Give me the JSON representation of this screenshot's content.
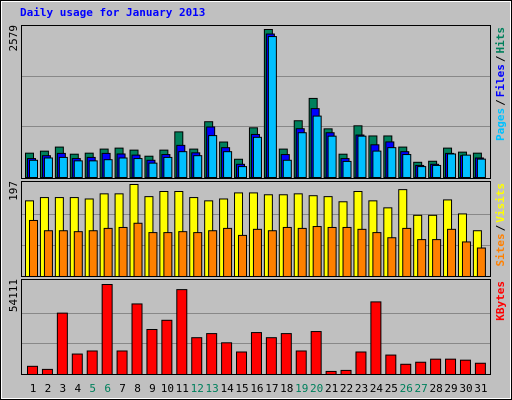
{
  "chart_data": [
    {
      "type": "bar",
      "title": "Daily usage for January 2013",
      "ylim": [
        0,
        2579
      ],
      "yticks": [
        2579
      ],
      "legend_separator": "/",
      "series": [
        {
          "name": "Hits",
          "color": "#00805c",
          "values": [
            424,
            459,
            530,
            406,
            424,
            495,
            512,
            477,
            371,
            477,
            795,
            495,
            972,
            618,
            318,
            866,
            2579,
            495,
            989,
            1378,
            848,
            406,
            901,
            724,
            724,
            530,
            265,
            283,
            512,
            442,
            424
          ]
        },
        {
          "name": "Files",
          "color": "#0000ff",
          "values": [
            330,
            380,
            420,
            330,
            350,
            420,
            410,
            390,
            300,
            400,
            560,
            430,
            880,
            520,
            230,
            750,
            2500,
            400,
            850,
            1200,
            780,
            330,
            740,
            570,
            620,
            450,
            210,
            230,
            420,
            380,
            340
          ]
        },
        {
          "name": "Pages",
          "color": "#00c0ff",
          "values": [
            300,
            340,
            350,
            290,
            290,
            310,
            340,
            330,
            250,
            350,
            450,
            380,
            730,
            450,
            190,
            700,
            2456,
            300,
            780,
            1070,
            720,
            280,
            720,
            460,
            520,
            400,
            190,
            210,
            410,
            390,
            320
          ]
        }
      ]
    },
    {
      "type": "bar",
      "ylim": [
        0,
        197
      ],
      "yticks": [
        197
      ],
      "legend_separator": "/",
      "series": [
        {
          "name": "Visits",
          "color": "#ffff00",
          "values": [
            162,
            169,
            169,
            169,
            166,
            177,
            177,
            197,
            171,
            182,
            182,
            169,
            162,
            166,
            179,
            179,
            175,
            175,
            177,
            173,
            171,
            160,
            182,
            162,
            147,
            186,
            131,
            131,
            164,
            134,
            98
          ]
        },
        {
          "name": "Sites",
          "color": "#ff8000",
          "values": [
            120,
            98,
            98,
            96,
            98,
            103,
            105,
            114,
            94,
            94,
            96,
            94,
            98,
            103,
            88,
            101,
            98,
            105,
            103,
            107,
            105,
            105,
            101,
            94,
            83,
            103,
            79,
            79,
            101,
            74,
            61
          ]
        }
      ]
    },
    {
      "type": "bar",
      "ylim": [
        0,
        54111
      ],
      "yticks": [
        54111
      ],
      "categories": [
        "1",
        "2",
        "3",
        "4",
        "5",
        "6",
        "7",
        "8",
        "9",
        "10",
        "11",
        "12",
        "13",
        "14",
        "15",
        "16",
        "17",
        "18",
        "19",
        "20",
        "21",
        "22",
        "23",
        "24",
        "25",
        "26",
        "27",
        "28",
        "29",
        "30",
        "31"
      ],
      "category_colors": [
        "#000000",
        "#000000",
        "#000000",
        "#000000",
        "#00805c",
        "#00805c",
        "#000000",
        "#000000",
        "#000000",
        "#000000",
        "#000000",
        "#00805c",
        "#00805c",
        "#000000",
        "#000000",
        "#000000",
        "#000000",
        "#000000",
        "#00805c",
        "#00805c",
        "#000000",
        "#000000",
        "#000000",
        "#000000",
        "#000000",
        "#00805c",
        "#00805c",
        "#000000",
        "#000000",
        "#000000",
        "#000000"
      ],
      "series": [
        {
          "name": "KBytes",
          "color": "#ff0000",
          "values": [
            4919,
            3074,
            36894,
            12298,
            14143,
            54111,
            14143,
            42428,
            27055,
            32589,
            51037,
            22136,
            24596,
            19062,
            13528,
            25211,
            22136,
            24596,
            14143,
            25826,
            1845,
            2460,
            13528,
            43658,
            11683,
            6149,
            7379,
            9224,
            9224,
            8609,
            6764
          ]
        }
      ]
    }
  ]
}
